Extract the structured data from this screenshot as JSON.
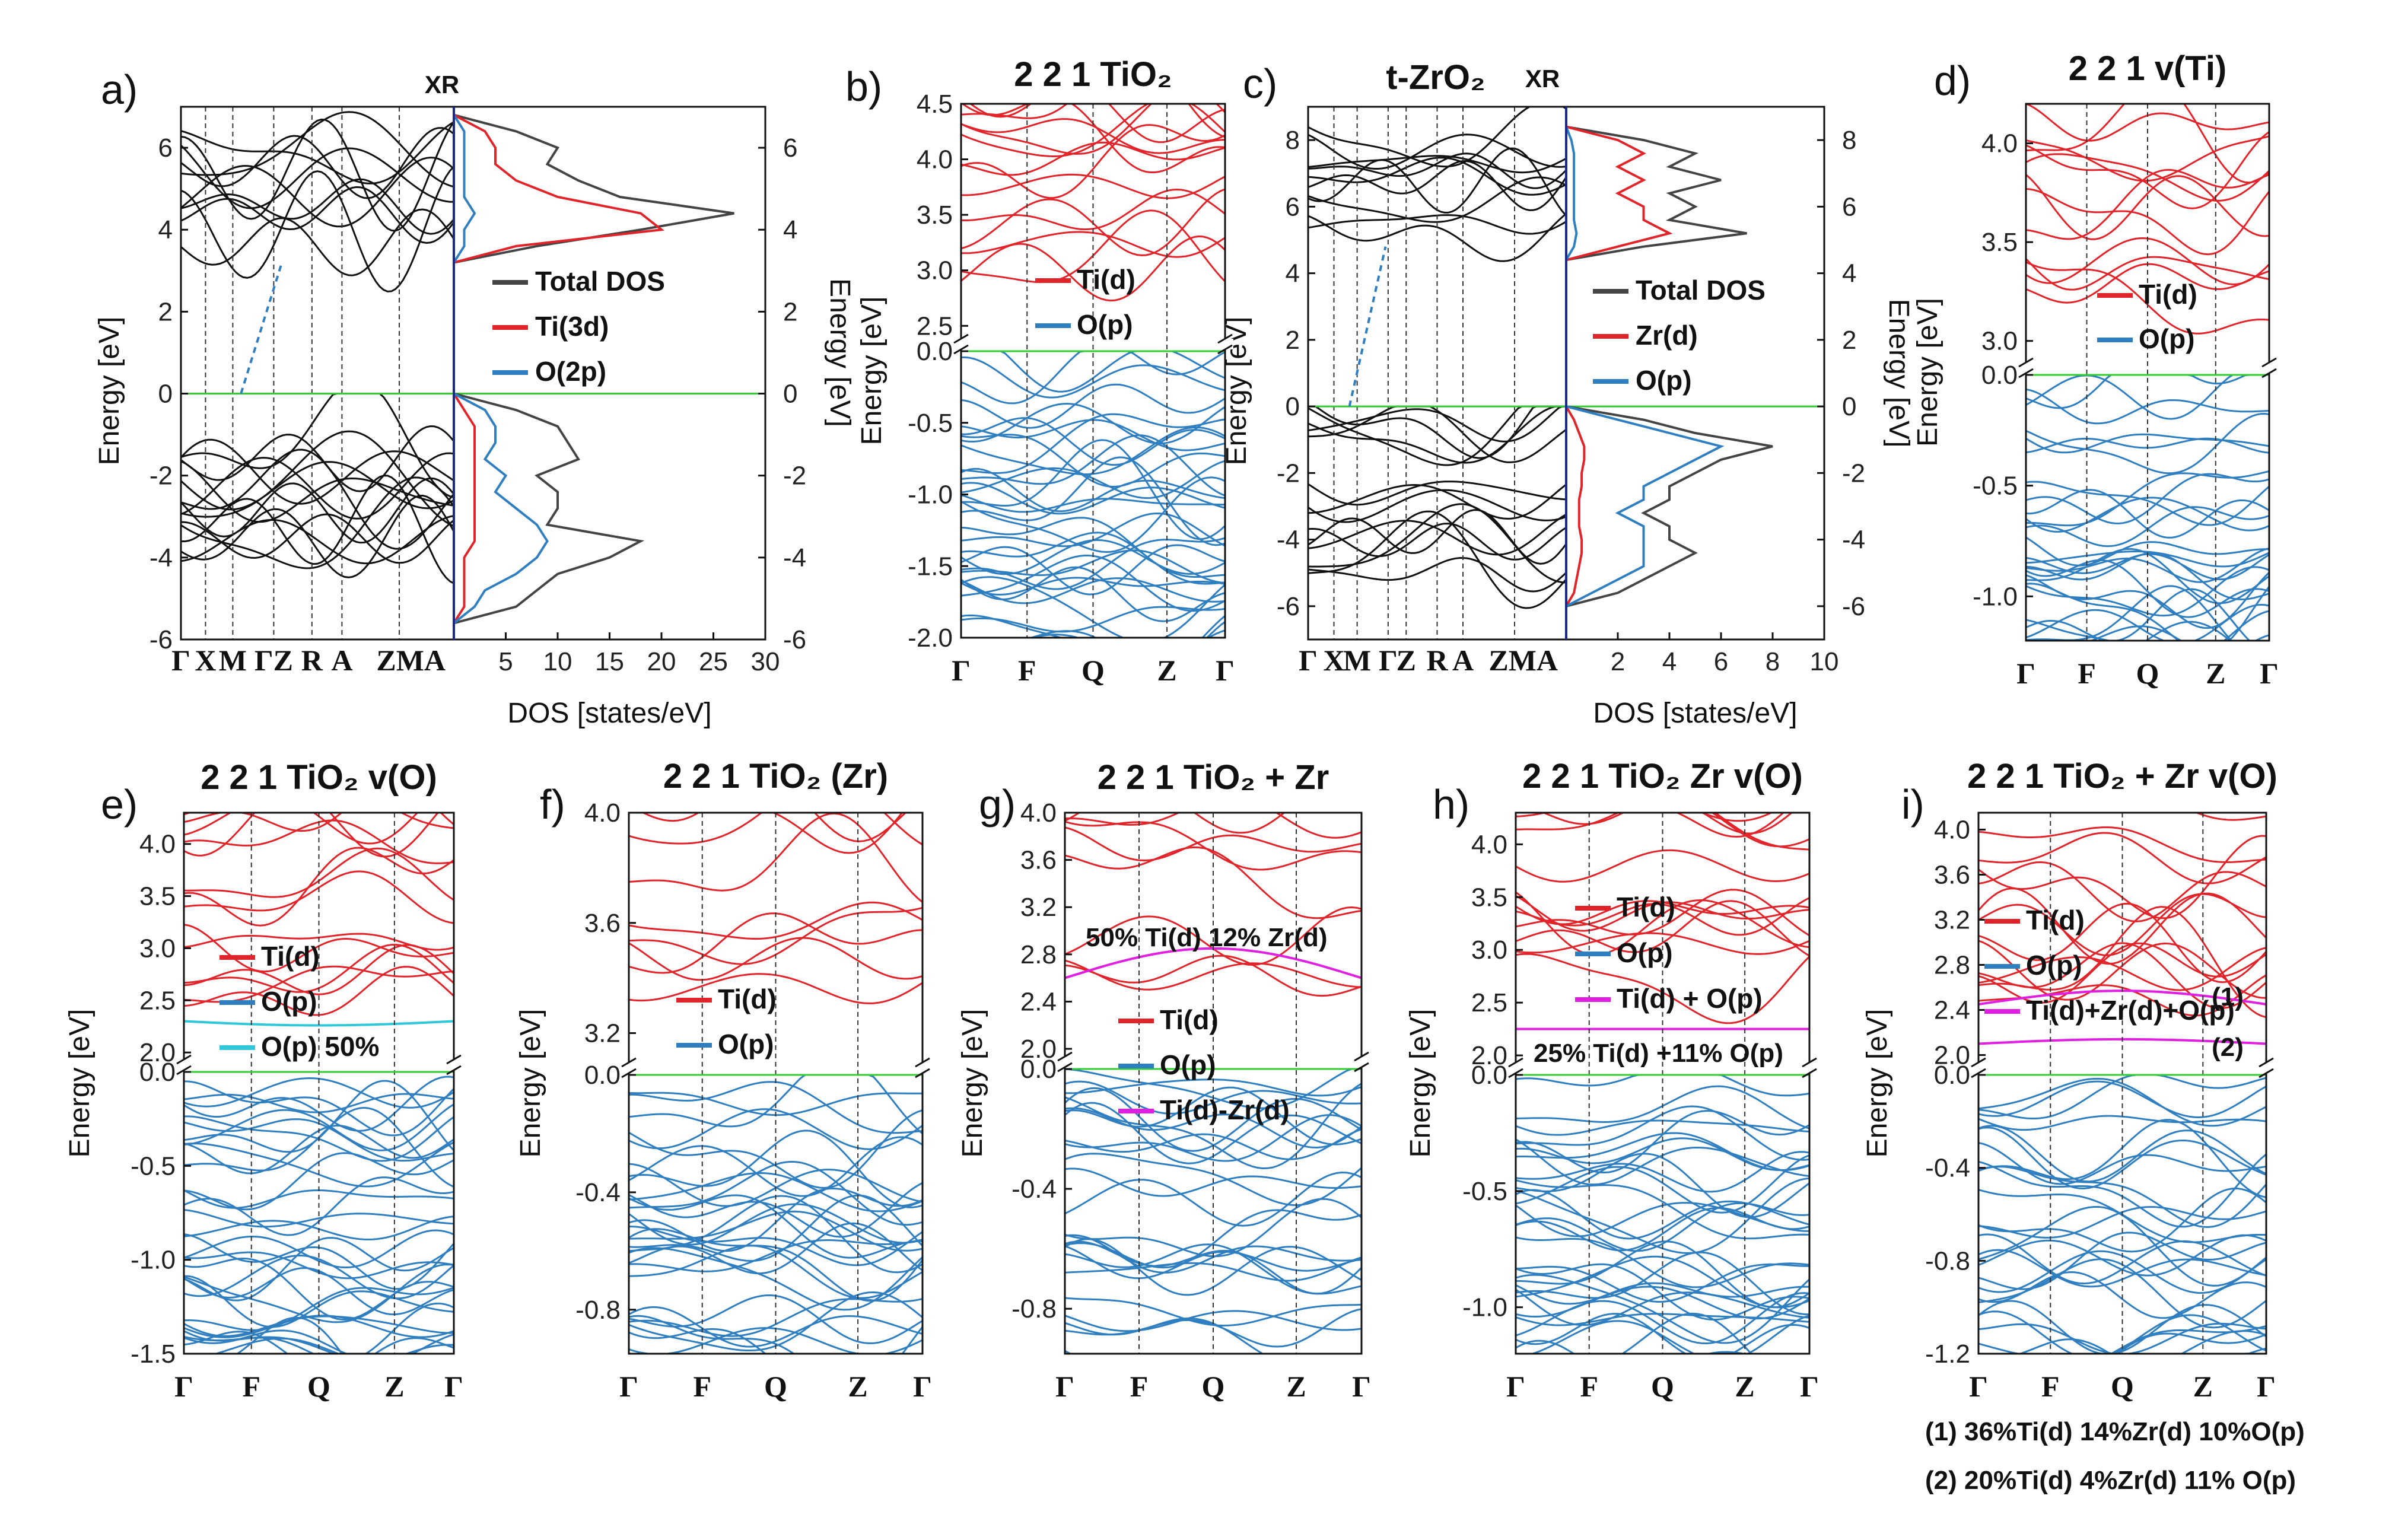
{
  "colors": {
    "cond": "#e0242a",
    "val": "#2f7fc0",
    "black": "#111111",
    "fermi": "#33cc33",
    "defect_cyan": "#30c8d8",
    "defect_magenta": "#e020e0"
  },
  "chart_data": [
    {
      "id": "a",
      "type": "line",
      "letter": "a)",
      "xr": "XR",
      "kpoints": [
        "Γ",
        "X",
        "M",
        "ΓZ",
        "R",
        "A",
        "ZMA"
      ],
      "ylabel": "Energy [eV]",
      "ylabel_right": "Energy [eV]",
      "ylim": [
        -6,
        7
      ],
      "yticks": [
        "6",
        "4",
        "2",
        "0",
        "-2",
        "-4",
        "-6"
      ],
      "yticks_right": [
        "6",
        "4",
        "2",
        "0",
        "-2",
        "-4",
        "-6"
      ],
      "dos_xlabel": "DOS [states/eV]",
      "dos_xticks": [
        "5",
        "10",
        "15",
        "20",
        "25",
        "30"
      ],
      "dos_xlim": [
        0,
        30
      ],
      "legend": [
        "Total DOS",
        "Ti(3d)",
        "O(2p)"
      ],
      "series_dos": {
        "energy": [
          -5.6,
          -5.2,
          -4.8,
          -4.4,
          -4.0,
          -3.6,
          -3.2,
          -2.8,
          -2.4,
          -2.0,
          -1.6,
          -1.2,
          -0.8,
          -0.4,
          0.0,
          3.2,
          3.6,
          4.0,
          4.4,
          4.8,
          5.2,
          5.6,
          6.0,
          6.4,
          6.8
        ],
        "total": [
          0,
          6,
          8,
          10,
          15,
          18,
          9,
          10,
          10,
          8,
          12,
          11,
          10,
          6,
          0,
          0,
          8,
          18,
          27,
          16,
          12,
          9,
          10,
          6,
          0
        ],
        "ti": [
          0,
          1,
          1,
          1,
          1,
          2,
          2,
          2,
          2,
          2,
          2,
          2,
          2,
          1,
          0,
          0,
          6,
          20,
          18,
          10,
          6,
          4,
          4,
          3,
          0
        ],
        "o": [
          0,
          2,
          3,
          6,
          8,
          9,
          8,
          6,
          4,
          5,
          3,
          4,
          4,
          3,
          0,
          0,
          1,
          1,
          2,
          1,
          1,
          1,
          1,
          1,
          0
        ]
      }
    },
    {
      "id": "b",
      "type": "line",
      "letter": "b)",
      "title": "2 2 1 TiO₂",
      "kpoints": [
        "Γ",
        "F",
        "Q",
        "Z",
        "Γ"
      ],
      "ylabel": "Energy [eV]",
      "yticks_upper": [
        "4.5",
        "4.0",
        "3.5",
        "3.0",
        "2.5"
      ],
      "yticks_lower": [
        "0.0",
        "-0.5",
        "-1.0",
        "-1.5",
        "-2.0"
      ],
      "legend": [
        "Ti(d)",
        "O(p)"
      ]
    },
    {
      "id": "c",
      "type": "line",
      "letter": "c)",
      "title": "t-ZrO₂",
      "xr": "XR",
      "kpoints": [
        "Γ",
        "X",
        "M",
        "Γ",
        "Z",
        "R",
        "A",
        "ZMA"
      ],
      "ylabel": "Energy [eV]",
      "ylabel_right": "Energy [eV]",
      "yticks": [
        "8",
        "6",
        "4",
        "2",
        "0",
        "-2",
        "-4",
        "-6"
      ],
      "yticks_right": [
        "8",
        "6",
        "4",
        "2",
        "0",
        "-2",
        "-4",
        "-6"
      ],
      "dos_xlabel": "DOS [states/eV]",
      "dos_xticks": [
        "2",
        "4",
        "6",
        "8",
        "10"
      ],
      "dos_xlim": [
        0,
        10
      ],
      "legend": [
        "Total DOS",
        "Zr(d)",
        "O(p)"
      ],
      "series_dos": {
        "energy": [
          -6.0,
          -5.6,
          -5.2,
          -4.8,
          -4.4,
          -4.0,
          -3.6,
          -3.2,
          -2.8,
          -2.4,
          -2.0,
          -1.6,
          -1.2,
          -0.8,
          -0.4,
          0.0,
          4.4,
          4.8,
          5.2,
          5.6,
          6.0,
          6.4,
          6.8,
          7.2,
          7.6,
          8.0,
          8.4
        ],
        "total": [
          0,
          2,
          3,
          4,
          5,
          4,
          4,
          3,
          4,
          4,
          5,
          6,
          8,
          5,
          3,
          0,
          0,
          3,
          7,
          4,
          5,
          4,
          6,
          4,
          5,
          3,
          0
        ],
        "zr": [
          0,
          0.3,
          0.4,
          0.5,
          0.6,
          0.6,
          0.5,
          0.5,
          0.5,
          0.6,
          0.6,
          0.7,
          0.7,
          0.5,
          0.3,
          0,
          0,
          2,
          4,
          3,
          3,
          2,
          3,
          2,
          3,
          2,
          0
        ],
        "o": [
          0,
          1,
          2,
          3,
          3,
          3,
          3,
          2,
          3,
          3,
          4,
          5,
          6,
          4,
          2,
          0,
          0,
          0.3,
          0.4,
          0.3,
          0.3,
          0.3,
          0.3,
          0.3,
          0.3,
          0.2,
          0
        ]
      }
    },
    {
      "id": "d",
      "type": "line",
      "letter": "d)",
      "title": "2 2 1 v(Ti)",
      "kpoints": [
        "Γ",
        "F",
        "Q",
        "Z",
        "Γ"
      ],
      "ylabel": "Energy [eV]",
      "yticks_upper": [
        "4.0",
        "3.5",
        "3.0"
      ],
      "yticks_lower": [
        "0.0",
        "-0.5",
        "-1.0"
      ],
      "legend": [
        "Ti(d)",
        "O(p)"
      ]
    },
    {
      "id": "e",
      "type": "line",
      "letter": "e)",
      "title": "2 2 1 TiO₂ v(O)",
      "kpoints": [
        "Γ",
        "F",
        "Q",
        "Z",
        "Γ"
      ],
      "ylabel": "Energy [eV]",
      "yticks_upper": [
        "4.0",
        "3.5",
        "3.0",
        "2.5",
        "2.0"
      ],
      "yticks_lower": [
        "0.0",
        "-0.5",
        "-1.0",
        "-1.5"
      ],
      "legend": [
        "Ti(d)",
        "O(p)",
        "O(p) 50%"
      ]
    },
    {
      "id": "f",
      "type": "line",
      "letter": "f)",
      "title": "2 2 1 TiO₂ (Zr)",
      "kpoints": [
        "Γ",
        "F",
        "Q",
        "Z",
        "Γ"
      ],
      "ylabel": "Energy [eV]",
      "yticks_upper": [
        "4.0",
        "3.6",
        "3.2"
      ],
      "yticks_lower": [
        "0.0",
        "-0.4",
        "-0.8"
      ],
      "legend": [
        "Ti(d)",
        "O(p)"
      ]
    },
    {
      "id": "g",
      "type": "line",
      "letter": "g)",
      "title": "2 2 1 TiO₂ + Zr",
      "kpoints": [
        "Γ",
        "F",
        "Q",
        "Z",
        "Γ"
      ],
      "ylabel": "Energy [eV]",
      "yticks_upper": [
        "4.0",
        "3.6",
        "3.2",
        "2.8",
        "2.4",
        "2.0"
      ],
      "yticks_lower": [
        "0.0",
        "-0.4",
        "-0.8"
      ],
      "legend": [
        "Ti(d)",
        "O(p)",
        "Ti(d)-Zr(d)"
      ],
      "annotation": "50% Ti(d) 12% Zr(d)"
    },
    {
      "id": "h",
      "type": "line",
      "letter": "h)",
      "title": "2 2 1 TiO₂ Zr v(O)",
      "kpoints": [
        "Γ",
        "F",
        "Q",
        "Z",
        "Γ"
      ],
      "ylabel": "Energy [eV]",
      "yticks_upper": [
        "4.0",
        "3.5",
        "3.0",
        "2.5",
        "2.0"
      ],
      "yticks_lower": [
        "0.0",
        "-0.5",
        "-1.0"
      ],
      "legend": [
        "Ti(d)",
        "O(p)",
        "Ti(d) + O(p)"
      ],
      "annotation": "25% Ti(d) +11% O(p)"
    },
    {
      "id": "i",
      "type": "line",
      "letter": "i)",
      "title": "2 2 1 TiO₂ + Zr v(O)",
      "kpoints": [
        "Γ",
        "F",
        "Q",
        "Z",
        "Γ"
      ],
      "ylabel": "Energy [eV]",
      "yticks_upper": [
        "4.0",
        "3.6",
        "3.2",
        "2.8",
        "2.4",
        "2.0"
      ],
      "yticks_lower": [
        "0.0",
        "-0.4",
        "-0.8",
        "-1.2"
      ],
      "legend": [
        "Ti(d)",
        "O(p)",
        "Ti(d)+Zr(d)+O(p)"
      ],
      "marker1": "(1)",
      "marker2": "(2)",
      "note1": "(1) 36%Ti(d) 14%Zr(d) 10%O(p)",
      "note2": "(2) 20%Ti(d) 4%Zr(d) 11% O(p)"
    }
  ]
}
